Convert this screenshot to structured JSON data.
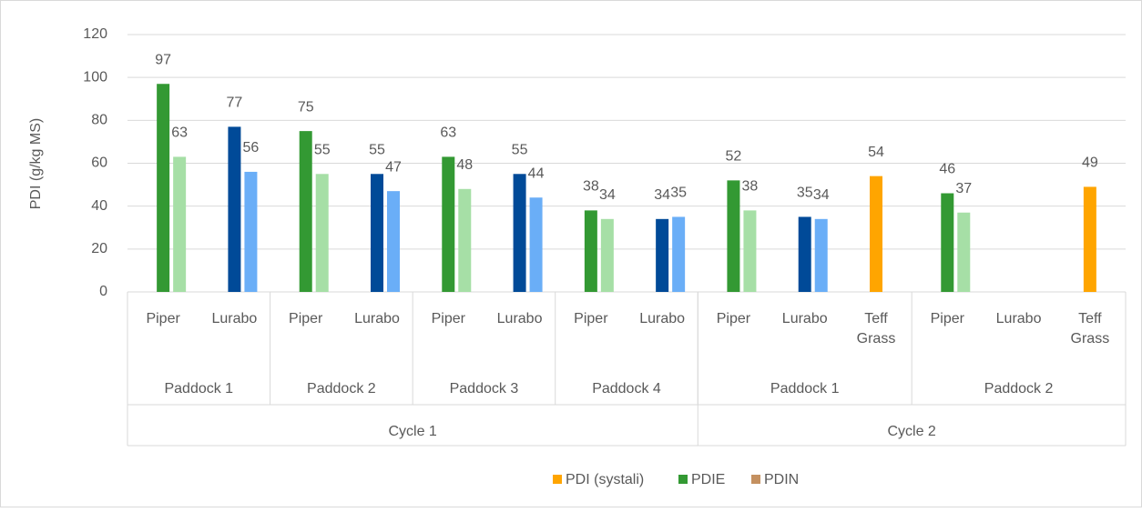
{
  "chart_data": {
    "type": "bar",
    "y_label": "PDI (g/kg MS)",
    "ylim": [
      0,
      120
    ],
    "yticks": [
      0,
      20,
      40,
      60,
      80,
      100,
      120
    ],
    "grid": true,
    "legend": "bottom",
    "cycles": [
      {
        "name": "Cycle 1",
        "paddocks": [
          {
            "name": "Paddock 1",
            "categories": [
              "Piper",
              "Lurabo"
            ]
          },
          {
            "name": "Paddock 2",
            "categories": [
              "Piper",
              "Lurabo"
            ]
          },
          {
            "name": "Paddock 3",
            "categories": [
              "Piper",
              "Lurabo"
            ]
          },
          {
            "name": "Paddock 4",
            "categories": [
              "Piper",
              "Lurabo"
            ]
          }
        ]
      },
      {
        "name": "Cycle 2",
        "paddocks": [
          {
            "name": "Paddock 1",
            "categories": [
              "Piper",
              "Lurabo",
              "Teff Grass"
            ]
          },
          {
            "name": "Paddock 2",
            "categories": [
              "Piper",
              "Lurabo",
              "Teff Grass"
            ]
          }
        ]
      }
    ],
    "series": [
      {
        "name": "PDI (systali)",
        "color": "#ffa500",
        "values": [
          null,
          null,
          null,
          null,
          null,
          null,
          null,
          null,
          null,
          null,
          54,
          null,
          null,
          49
        ],
        "point_colors": [
          null,
          null,
          null,
          null,
          null,
          null,
          null,
          null,
          null,
          null,
          "#ffa500",
          null,
          null,
          "#ffa500"
        ]
      },
      {
        "name": "PDIE",
        "color": "#339933",
        "values": [
          97,
          77,
          75,
          55,
          63,
          55,
          38,
          34,
          52,
          35,
          null,
          46,
          null,
          null
        ],
        "point_colors": [
          "#339933",
          "#004a98",
          "#339933",
          "#004a98",
          "#339933",
          "#004a98",
          "#339933",
          "#004a98",
          "#339933",
          "#004a98",
          null,
          "#339933",
          null,
          null
        ]
      },
      {
        "name": "PDIN",
        "color": "#c49060",
        "values": [
          63,
          56,
          55,
          47,
          48,
          44,
          34,
          35,
          38,
          34,
          null,
          37,
          null,
          null
        ],
        "point_colors": [
          "#a6dfa6",
          "#6aaef7",
          "#a6dfa6",
          "#6aaef7",
          "#a6dfa6",
          "#6aaef7",
          "#a6dfa6",
          "#6aaef7",
          "#a6dfa6",
          "#6aaef7",
          null,
          "#a6dfa6",
          null,
          null
        ]
      }
    ]
  }
}
